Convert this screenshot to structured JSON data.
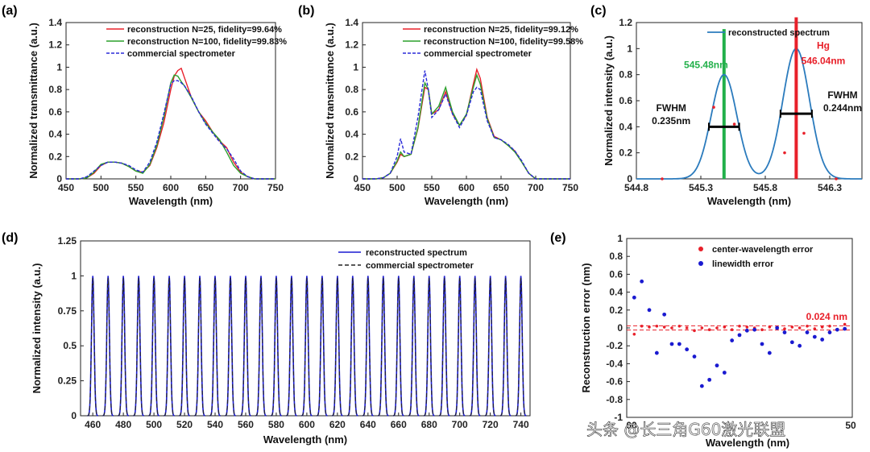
{
  "panels": {
    "a": {
      "label": "(a)",
      "type": "line",
      "xlabel": "Wavelength (nm)",
      "ylabel": "Normalized transmittance (a.u.)",
      "xlim": [
        450,
        750
      ],
      "ylim": [
        0,
        1.4
      ],
      "xticks": [
        "450",
        "500",
        "550",
        "600",
        "650",
        "700",
        "750"
      ],
      "yticks": [
        "0",
        "0.2",
        "0.4",
        "0.6",
        "0.8",
        "1",
        "1.2",
        "1.4"
      ],
      "series": [
        {
          "name": "reconstruction N=25, fidelity=99.64%",
          "color": "#e8202a",
          "dash": "",
          "x": [
            450,
            470,
            480,
            490,
            500,
            510,
            520,
            530,
            540,
            550,
            560,
            570,
            580,
            590,
            600,
            605,
            610,
            615,
            620,
            630,
            640,
            650,
            660,
            670,
            680,
            690,
            700,
            710,
            720,
            750
          ],
          "y": [
            0,
            0,
            0.01,
            0.05,
            0.12,
            0.15,
            0.15,
            0.14,
            0.11,
            0.07,
            0.06,
            0.12,
            0.28,
            0.5,
            0.8,
            0.92,
            0.97,
            0.99,
            0.9,
            0.72,
            0.6,
            0.52,
            0.42,
            0.34,
            0.28,
            0.15,
            0.06,
            0.02,
            0,
            0
          ]
        },
        {
          "name": "reconstruction N=100, fidelity=99.83%",
          "color": "#2ca02c",
          "dash": "",
          "x": [
            450,
            470,
            480,
            490,
            500,
            510,
            520,
            530,
            540,
            550,
            560,
            570,
            580,
            590,
            600,
            605,
            610,
            615,
            620,
            630,
            640,
            650,
            660,
            670,
            680,
            690,
            700,
            710,
            720,
            750
          ],
          "y": [
            0,
            0,
            0.01,
            0.06,
            0.13,
            0.15,
            0.15,
            0.14,
            0.11,
            0.07,
            0.05,
            0.13,
            0.3,
            0.55,
            0.86,
            0.93,
            0.92,
            0.87,
            0.83,
            0.72,
            0.6,
            0.5,
            0.42,
            0.35,
            0.24,
            0.12,
            0.05,
            0.02,
            0,
            0
          ]
        },
        {
          "name": "commercial spectrometer",
          "color": "#2a2ad8",
          "dash": "4,2",
          "x": [
            450,
            470,
            480,
            490,
            500,
            510,
            520,
            530,
            540,
            550,
            560,
            570,
            580,
            590,
            600,
            605,
            610,
            615,
            620,
            630,
            640,
            650,
            660,
            670,
            680,
            690,
            700,
            710,
            720,
            750
          ],
          "y": [
            0,
            0,
            0.02,
            0.07,
            0.12,
            0.15,
            0.15,
            0.14,
            0.12,
            0.08,
            0.06,
            0.15,
            0.33,
            0.58,
            0.85,
            0.88,
            0.88,
            0.86,
            0.83,
            0.73,
            0.6,
            0.49,
            0.41,
            0.33,
            0.27,
            0.18,
            0.07,
            0.02,
            0,
            0
          ]
        }
      ]
    },
    "b": {
      "label": "(b)",
      "type": "line",
      "xlabel": "Wavelength (nm)",
      "ylabel": "Normalized transmittance (a.u.)",
      "xlim": [
        450,
        750
      ],
      "ylim": [
        0,
        1.4
      ],
      "xticks": [
        "450",
        "500",
        "550",
        "600",
        "650",
        "700",
        "750"
      ],
      "yticks": [
        "0",
        "0.2",
        "0.4",
        "0.6",
        "0.8",
        "1",
        "1.2",
        "1.4"
      ],
      "series": [
        {
          "name": "reconstruction N=25, fidelity=99.12%",
          "color": "#e8202a",
          "dash": "",
          "x": [
            450,
            470,
            480,
            490,
            500,
            505,
            510,
            520,
            530,
            540,
            545,
            550,
            560,
            570,
            580,
            590,
            600,
            610,
            615,
            620,
            630,
            640,
            650,
            660,
            670,
            680,
            690,
            700,
            750
          ],
          "y": [
            0,
            0,
            0.01,
            0.05,
            0.15,
            0.22,
            0.2,
            0.22,
            0.45,
            0.82,
            0.8,
            0.58,
            0.62,
            0.78,
            0.58,
            0.48,
            0.57,
            0.85,
            0.98,
            0.9,
            0.55,
            0.38,
            0.35,
            0.3,
            0.25,
            0.15,
            0.05,
            0,
            0
          ]
        },
        {
          "name": "reconstruction N=100, fidelity=99.58%",
          "color": "#2ca02c",
          "dash": "",
          "x": [
            450,
            470,
            480,
            490,
            500,
            505,
            510,
            520,
            530,
            540,
            545,
            550,
            560,
            570,
            580,
            590,
            600,
            610,
            615,
            620,
            630,
            640,
            650,
            660,
            670,
            680,
            690,
            700,
            750
          ],
          "y": [
            0,
            0,
            0.01,
            0.05,
            0.16,
            0.24,
            0.2,
            0.22,
            0.46,
            0.86,
            0.8,
            0.58,
            0.65,
            0.82,
            0.6,
            0.48,
            0.58,
            0.82,
            0.93,
            0.85,
            0.54,
            0.37,
            0.35,
            0.3,
            0.24,
            0.15,
            0.05,
            0,
            0
          ]
        },
        {
          "name": "commercial spectrometer",
          "color": "#2a2ad8",
          "dash": "4,2",
          "x": [
            450,
            470,
            480,
            490,
            500,
            505,
            510,
            520,
            530,
            540,
            545,
            550,
            560,
            570,
            580,
            590,
            600,
            610,
            615,
            620,
            630,
            640,
            650,
            660,
            670,
            680,
            690,
            700,
            750
          ],
          "y": [
            0,
            0,
            0.01,
            0.05,
            0.2,
            0.36,
            0.24,
            0.22,
            0.55,
            0.97,
            0.8,
            0.55,
            0.62,
            0.76,
            0.58,
            0.46,
            0.57,
            0.78,
            0.82,
            0.8,
            0.52,
            0.37,
            0.35,
            0.31,
            0.25,
            0.16,
            0.05,
            0,
            0
          ]
        }
      ]
    },
    "c": {
      "label": "(c)",
      "type": "line",
      "xlabel": "Wavelength (nm)",
      "ylabel": "Normalized intensity (a.u.)",
      "xlim": [
        544.8,
        546.55
      ],
      "ylim": [
        0,
        1.2
      ],
      "xticks": [
        "544.8",
        "545.3",
        "545.8",
        "546.3"
      ],
      "xtick_values": [
        544.8,
        545.3,
        545.8,
        546.3
      ],
      "yticks": [
        "0",
        "0.2",
        "0.4",
        "0.6",
        "0.8",
        "1",
        "1.2"
      ],
      "legend": "reconstructed spectrum",
      "curve_color": "#2b7bbd",
      "peaks": [
        {
          "center": 545.48,
          "amp": 0.8,
          "fwhm": 0.235
        },
        {
          "center": 546.04,
          "amp": 1.0,
          "fwhm": 0.244
        }
      ],
      "lines": [
        {
          "x": 545.48,
          "height": 1.15,
          "color": "#22b04a"
        },
        {
          "x": 546.04,
          "height": 1.24,
          "color": "#e8202a"
        }
      ],
      "red_dots": {
        "x": [
          545.0,
          545.4,
          545.56,
          545.95,
          546.04,
          546.1,
          546.35
        ],
        "y": [
          0,
          0.55,
          0.42,
          0.2,
          1.0,
          0.35,
          0
        ]
      },
      "annotations": {
        "green_label": "545.48nm",
        "hg_label": "Hg",
        "red_label": "546.04nm",
        "fwhm_left_1": "FWHM",
        "fwhm_left_2": "0.235nm",
        "fwhm_right_1": "FWHM",
        "fwhm_right_2": "0.244nm"
      }
    },
    "d": {
      "label": "(d)",
      "type": "line",
      "xlabel": "Wavelength (nm)",
      "ylabel": "Normalized intensity (a.u.)",
      "xlim": [
        452,
        746
      ],
      "ylim": [
        0,
        1.25
      ],
      "xticks": [
        "460",
        "480",
        "500",
        "520",
        "540",
        "560",
        "580",
        "600",
        "620",
        "640",
        "660",
        "680",
        "700",
        "720",
        "740"
      ],
      "xtick_values": [
        460,
        480,
        500,
        520,
        540,
        560,
        580,
        600,
        620,
        640,
        660,
        680,
        700,
        720,
        740
      ],
      "yticks": [
        "0",
        "0.25",
        "0.5",
        "0.75",
        "1",
        "1.25"
      ],
      "yticks_values": [
        0,
        0.25,
        0.5,
        0.75,
        1,
        1.25
      ],
      "peak_count": 29,
      "peak_start": 460,
      "peak_spacing": 10,
      "peak_fwhm": 2.0,
      "series": [
        {
          "name": "reconstructed spectrum",
          "color": "#1a1ad0",
          "dash": ""
        },
        {
          "name": "commercial spectrometer",
          "color": "#222222",
          "dash": "5,3"
        }
      ]
    },
    "e": {
      "label": "(e)",
      "type": "scatter",
      "xlabel": "Wavelength (nm)",
      "ylabel": "Reconstruction error (nm)",
      "xlim": [
        450,
        750
      ],
      "ylim": [
        -1,
        1
      ],
      "yticks": [
        "-1",
        "-0.8",
        "-0.6",
        "-0.4",
        "-0.2",
        "0",
        "0.2",
        "0.4",
        "0.6",
        "0.8",
        "1"
      ],
      "yticks_values": [
        -1,
        -0.8,
        -0.6,
        -0.4,
        -0.2,
        0,
        0.2,
        0.4,
        0.6,
        0.8,
        1
      ],
      "xticks_visible": [
        "00",
        "50"
      ],
      "threshold_label": "0.024 nm",
      "threshold": 0.024,
      "series": [
        {
          "name": "center-wavelength error",
          "color": "#e8202a",
          "x": [
            460,
            470,
            480,
            490,
            500,
            510,
            520,
            530,
            540,
            550,
            560,
            570,
            580,
            590,
            600,
            610,
            620,
            630,
            640,
            650,
            660,
            670,
            680,
            690,
            700,
            710,
            720,
            730,
            740
          ],
          "y": [
            -0.07,
            0.02,
            0.01,
            0.02,
            0.01,
            0.0,
            0.02,
            0.0,
            -0.03,
            0.0,
            -0.02,
            0.0,
            0.01,
            -0.02,
            0.02,
            0.01,
            0.0,
            -0.02,
            0.01,
            0.0,
            -0.01,
            0.01,
            0.0,
            0.02,
            -0.01,
            0.01,
            0.02,
            -0.02,
            0.04
          ]
        },
        {
          "name": "linewidth error",
          "color": "#1a1ad0",
          "x": [
            460,
            470,
            480,
            490,
            500,
            510,
            520,
            530,
            540,
            550,
            560,
            570,
            580,
            590,
            600,
            610,
            620,
            630,
            640,
            650,
            660,
            670,
            680,
            690,
            700,
            710,
            720,
            730,
            740
          ],
          "y": [
            0.34,
            0.52,
            0.2,
            -0.28,
            0.15,
            -0.18,
            -0.18,
            -0.24,
            -0.32,
            -0.65,
            -0.58,
            -0.42,
            -0.5,
            -0.14,
            -0.08,
            -0.03,
            -0.02,
            -0.18,
            -0.28,
            0.0,
            -0.05,
            -0.16,
            -0.2,
            -0.05,
            -0.1,
            -0.13,
            -0.05,
            -0.02,
            -0.01
          ]
        }
      ]
    }
  },
  "watermark": "头条 @长三角G60激光联盟"
}
